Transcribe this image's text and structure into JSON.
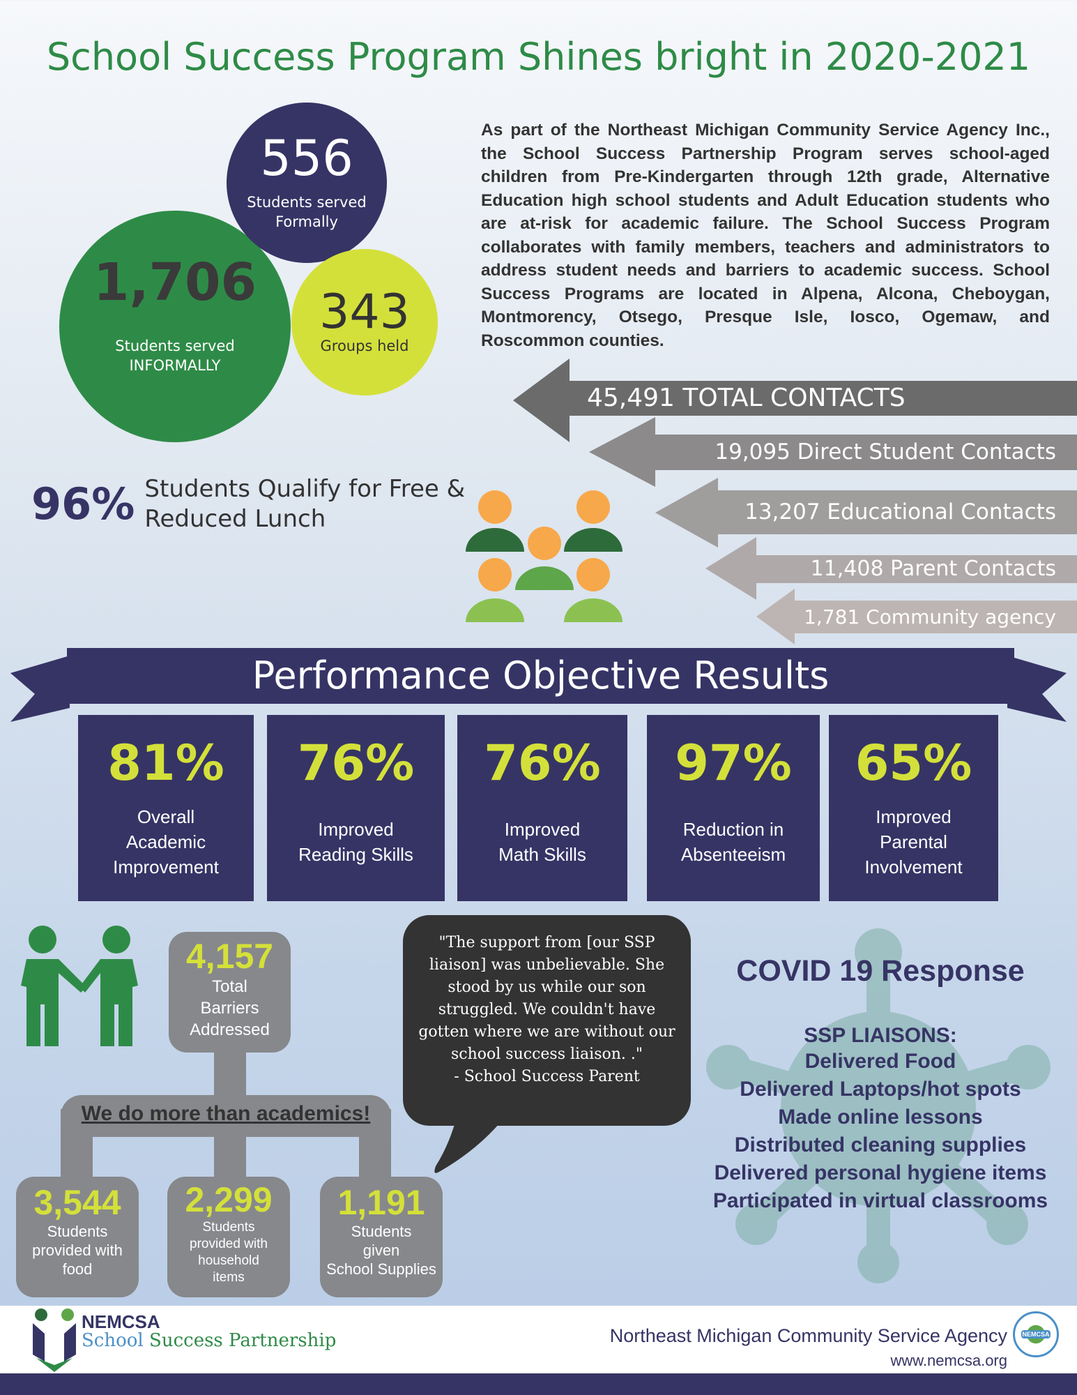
{
  "title": "School Success Program Shines bright in 2020-2021",
  "circles": {
    "formal": {
      "value": "556",
      "label1": "Students served",
      "label2": "Formally"
    },
    "informal": {
      "value": "1,706",
      "label1": "Students served",
      "label2": "INFORMALLY"
    },
    "groups": {
      "value": "343",
      "label": "Groups held"
    }
  },
  "intro": "As part of the Northeast Michigan Community Service Agency Inc., the School Success Partnership Program serves school-aged children from Pre-Kindergarten through 12th grade, Alternative Education high school students and Adult Education students who are at-risk for academic failure. The School Success Program collaborates with family members, teachers and administrators to address student needs and barriers to academic success. School Success Programs are located in Alpena, Alcona, Cheboygan, Montmorency, Otsego, Presque Isle, Iosco, Ogemaw, and Roscommon counties.",
  "contacts": [
    {
      "label": "45,491 TOTAL CONTACTS",
      "color": "#6b6b6b"
    },
    {
      "label": "19,095 Direct Student Contacts",
      "color": "#8c8a8a"
    },
    {
      "label": "13,207 Educational Contacts",
      "color": "#a09d9d"
    },
    {
      "label": "11,408 Parent Contacts",
      "color": "#b0a9a9"
    },
    {
      "label": "1,781 Community agency",
      "color": "#bdb5b3"
    }
  ],
  "lunch": {
    "pct": "96%",
    "line1": "Students Qualify for Free &",
    "line2": "Reduced Lunch"
  },
  "banner": "Performance Objective Results",
  "objectives": [
    {
      "pct": "81%",
      "lines": [
        "Overall",
        "Academic",
        "Improvement"
      ]
    },
    {
      "pct": "76%",
      "lines": [
        "Improved",
        "Reading Skills"
      ]
    },
    {
      "pct": "76%",
      "lines": [
        "Improved",
        "Math Skills"
      ]
    },
    {
      "pct": "97%",
      "lines": [
        "Reduction in",
        "Absenteeism"
      ]
    },
    {
      "pct": "65%",
      "lines": [
        "Improved",
        "Parental",
        "Involvement"
      ]
    }
  ],
  "barriers": {
    "total": {
      "value": "4,157",
      "lines": [
        "Total",
        "Barriers",
        "Addressed"
      ]
    },
    "tagline": "We do more than academics!",
    "items": [
      {
        "value": "3,544",
        "lines": [
          "Students",
          "provided with",
          "food"
        ]
      },
      {
        "value": "2,299",
        "lines": [
          "Students",
          "provided with",
          "household",
          "items"
        ]
      },
      {
        "value": "1,191",
        "lines": [
          "Students",
          "given",
          "School Supplies"
        ]
      }
    ]
  },
  "quote": {
    "text": "\"The support from [our SSP liaison] was unbelievable. She stood by us while our son struggled. We couldn't have gotten where we are without our school success liaison. .\"",
    "attribution": "- School Success Parent"
  },
  "covid": {
    "title": "COVID 19 Response",
    "subtitle": "SSP LIAISONS:",
    "items": [
      "Delivered Food",
      "Delivered Laptops/hot spots",
      "Made online lessons",
      "Distributed cleaning supplies",
      "Delivered personal hygiene items",
      "Participated in virtual classrooms"
    ]
  },
  "footer": {
    "logo_top": "NEMCSA",
    "logo_school": "School",
    "logo_rest": "Success Partnership",
    "agency": "Northeast Michigan Community Service Agency",
    "url": "www.nemcsa.org",
    "seal": "NEMCSA"
  },
  "colors": {
    "navy": "#363465",
    "green": "#2e8b47",
    "lime": "#d4e03a",
    "gray": "#87888c"
  }
}
